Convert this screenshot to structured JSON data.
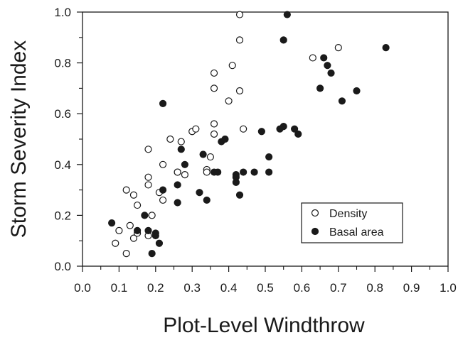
{
  "chart_data": {
    "type": "scatter",
    "title": "",
    "xlabel": "Plot-Level Windthrow",
    "ylabel": "Storm Severity Index",
    "xlim": [
      0.0,
      1.0
    ],
    "ylim": [
      0.0,
      1.0
    ],
    "x_ticks": [
      "0.0",
      "0.1",
      "0.2",
      "0.3",
      "0.4",
      "0.5",
      "0.6",
      "0.7",
      "0.8",
      "0.9",
      "1.0"
    ],
    "y_ticks": [
      "0.0",
      "0.2",
      "0.4",
      "0.6",
      "0.8",
      "1.0"
    ],
    "grid": false,
    "legend_position": "bottom-right",
    "series": [
      {
        "name": "Density",
        "marker": "open-circle",
        "color": "#1a1a1a",
        "points": [
          [
            0.09,
            0.09
          ],
          [
            0.1,
            0.14
          ],
          [
            0.12,
            0.05
          ],
          [
            0.12,
            0.3
          ],
          [
            0.13,
            0.16
          ],
          [
            0.14,
            0.28
          ],
          [
            0.14,
            0.11
          ],
          [
            0.15,
            0.24
          ],
          [
            0.15,
            0.13
          ],
          [
            0.18,
            0.46
          ],
          [
            0.18,
            0.35
          ],
          [
            0.18,
            0.32
          ],
          [
            0.18,
            0.12
          ],
          [
            0.19,
            0.2
          ],
          [
            0.21,
            0.29
          ],
          [
            0.22,
            0.4
          ],
          [
            0.22,
            0.26
          ],
          [
            0.24,
            0.5
          ],
          [
            0.26,
            0.37
          ],
          [
            0.26,
            0.37
          ],
          [
            0.27,
            0.49
          ],
          [
            0.28,
            0.36
          ],
          [
            0.3,
            0.53
          ],
          [
            0.31,
            0.54
          ],
          [
            0.34,
            0.38
          ],
          [
            0.34,
            0.37
          ],
          [
            0.35,
            0.43
          ],
          [
            0.36,
            0.56
          ],
          [
            0.36,
            0.52
          ],
          [
            0.36,
            0.7
          ],
          [
            0.36,
            0.76
          ],
          [
            0.4,
            0.65
          ],
          [
            0.41,
            0.79
          ],
          [
            0.43,
            0.99
          ],
          [
            0.43,
            0.89
          ],
          [
            0.43,
            0.69
          ],
          [
            0.44,
            0.54
          ],
          [
            0.63,
            0.82
          ],
          [
            0.7,
            0.86
          ]
        ]
      },
      {
        "name": "Basal area",
        "marker": "filled-circle",
        "color": "#1a1a1a",
        "points": [
          [
            0.08,
            0.17
          ],
          [
            0.15,
            0.14
          ],
          [
            0.17,
            0.2
          ],
          [
            0.18,
            0.14
          ],
          [
            0.19,
            0.05
          ],
          [
            0.2,
            0.13
          ],
          [
            0.2,
            0.12
          ],
          [
            0.21,
            0.09
          ],
          [
            0.22,
            0.64
          ],
          [
            0.22,
            0.3
          ],
          [
            0.26,
            0.32
          ],
          [
            0.26,
            0.25
          ],
          [
            0.27,
            0.46
          ],
          [
            0.28,
            0.4
          ],
          [
            0.32,
            0.29
          ],
          [
            0.33,
            0.44
          ],
          [
            0.34,
            0.26
          ],
          [
            0.36,
            0.37
          ],
          [
            0.37,
            0.37
          ],
          [
            0.38,
            0.49
          ],
          [
            0.39,
            0.5
          ],
          [
            0.42,
            0.33
          ],
          [
            0.42,
            0.36
          ],
          [
            0.42,
            0.35
          ],
          [
            0.43,
            0.28
          ],
          [
            0.44,
            0.37
          ],
          [
            0.47,
            0.37
          ],
          [
            0.49,
            0.53
          ],
          [
            0.51,
            0.43
          ],
          [
            0.51,
            0.37
          ],
          [
            0.54,
            0.54
          ],
          [
            0.55,
            0.89
          ],
          [
            0.55,
            0.55
          ],
          [
            0.56,
            0.99
          ],
          [
            0.58,
            0.54
          ],
          [
            0.59,
            0.52
          ],
          [
            0.65,
            0.7
          ],
          [
            0.66,
            0.82
          ],
          [
            0.67,
            0.79
          ],
          [
            0.68,
            0.76
          ],
          [
            0.71,
            0.65
          ],
          [
            0.75,
            0.69
          ],
          [
            0.83,
            0.86
          ]
        ]
      }
    ]
  }
}
